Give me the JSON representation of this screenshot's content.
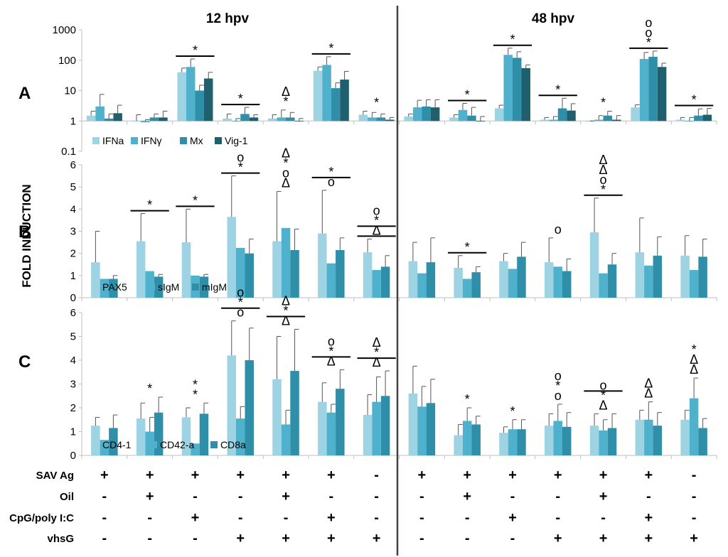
{
  "figure": {
    "header_left": "12 hpv",
    "header_right": "48 hpv",
    "y_axis_label": "FOLD INDUCTION",
    "panel_labels": [
      "A",
      "B",
      "C"
    ]
  },
  "colors": {
    "c1": "#9dd3e2",
    "c2": "#4fb1cb",
    "c3": "#2f8fa8",
    "c4": "#1f5f6e",
    "axis": "#bfbfbf",
    "divider": "#404040"
  },
  "treatments": {
    "rows": [
      {
        "label": "SAV Ag",
        "values": [
          "+",
          "+",
          "+",
          "+",
          "+",
          "+",
          "-",
          "+",
          "+",
          "+",
          "+",
          "+",
          "+",
          "-"
        ]
      },
      {
        "label": "Oil",
        "values": [
          "-",
          "+",
          "-",
          "-",
          "+",
          "-",
          "-",
          "-",
          "+",
          "-",
          "-",
          "+",
          "-",
          "-"
        ]
      },
      {
        "label": "CpG/poly I:C",
        "values": [
          "-",
          "-",
          "+",
          "-",
          "-",
          "+",
          "-",
          "-",
          "-",
          "+",
          "-",
          "-",
          "+",
          "-"
        ]
      },
      {
        "label": "vhsG",
        "values": [
          "-",
          "-",
          "-",
          "+",
          "+",
          "+",
          "+",
          "-",
          "-",
          "-",
          "+",
          "+",
          "+",
          "+"
        ]
      }
    ]
  },
  "chart_data": [
    {
      "panel": "A",
      "type": "bar",
      "scale": "log",
      "ylim": [
        0.1,
        1000
      ],
      "yticks": [
        "0.1",
        "1",
        "10",
        "100",
        "1000"
      ],
      "legend": [
        "IFNa",
        "IFNγ",
        "Mx",
        "Vig-1"
      ],
      "groups": 14,
      "series": [
        {
          "name": "IFNa",
          "values": [
            1.5,
            1.0,
            40,
            1.2,
            1.2,
            45,
            1.6,
            1.4,
            1.3,
            2.6,
            1.1,
            0.95,
            2.8,
            1.1
          ],
          "errors": [
            0.6,
            0.6,
            15,
            0.5,
            0.4,
            15,
            0.5,
            0.3,
            0.3,
            0.7,
            0.2,
            0.05,
            0.6,
            0.2
          ]
        },
        {
          "name": "IFNγ",
          "values": [
            3.0,
            0.9,
            60,
            1.0,
            1.3,
            70,
            1.3,
            2.8,
            2.3,
            150,
            1.1,
            1.1,
            110,
            1.0
          ],
          "errors": [
            4.5,
            0.2,
            50,
            0.2,
            1.0,
            60,
            0.6,
            2.0,
            1.5,
            100,
            0.3,
            0.4,
            70,
            0.3
          ]
        },
        {
          "name": "Mx",
          "values": [
            1.2,
            1.3,
            10,
            1.7,
            1.3,
            12,
            1.3,
            3.0,
            1.5,
            120,
            2.6,
            1.5,
            130,
            1.5
          ],
          "errors": [
            0.5,
            0.4,
            5,
            1.1,
            0.6,
            6,
            0.4,
            2.0,
            1.3,
            70,
            3.0,
            0.6,
            70,
            1.0
          ]
        },
        {
          "name": "Vig-1",
          "values": [
            1.8,
            1.3,
            25,
            1.3,
            1.0,
            23,
            1.1,
            2.8,
            1.0,
            55,
            2.2,
            1.1,
            60,
            1.6
          ],
          "errors": [
            1.5,
            0.8,
            15,
            0.3,
            0.2,
            20,
            0.2,
            2.2,
            0.4,
            15,
            1.5,
            0.4,
            20,
            1.0
          ]
        }
      ],
      "annotations": [
        {
          "group": 2,
          "text": "*",
          "line": true
        },
        {
          "group": 3,
          "text": "*",
          "line": true
        },
        {
          "group": 4,
          "text": "*",
          "line": false
        },
        {
          "group": 4,
          "text": "Δ",
          "line": false
        },
        {
          "group": 5,
          "text": "*",
          "line": true
        },
        {
          "group": 6,
          "text": "*",
          "line": false
        },
        {
          "group": 8,
          "text": "*",
          "line": true
        },
        {
          "group": 9,
          "text": "*",
          "line": true
        },
        {
          "group": 10,
          "text": "*",
          "line": true
        },
        {
          "group": 11,
          "text": "*",
          "line": false
        },
        {
          "group": 12,
          "text": "*",
          "line": true
        },
        {
          "group": 12,
          "text": "o",
          "line": false
        },
        {
          "group": 12,
          "text": "o",
          "line": false
        },
        {
          "group": 13,
          "text": "*",
          "line": true
        }
      ]
    },
    {
      "panel": "B",
      "type": "bar",
      "scale": "linear",
      "ylim": [
        0,
        6
      ],
      "yticks": [
        "0",
        "1",
        "2",
        "3",
        "4",
        "5",
        "6"
      ],
      "legend": [
        "PAX5",
        "sIgM",
        "mIgM"
      ],
      "groups": 14,
      "series": [
        {
          "name": "PAX5",
          "values": [
            1.6,
            2.55,
            2.5,
            3.65,
            2.55,
            2.9,
            2.05,
            1.65,
            1.35,
            1.65,
            1.6,
            2.95,
            2.05,
            1.9
          ],
          "errors": [
            1.4,
            1.25,
            1.5,
            1.85,
            2.25,
            1.95,
            0.6,
            0.85,
            0.55,
            0.35,
            1.1,
            1.55,
            1.55,
            0.9
          ]
        },
        {
          "name": "sIgM",
          "values": [
            0.85,
            1.2,
            1.0,
            2.25,
            3.15,
            1.55,
            1.25,
            1.1,
            0.85,
            1.3,
            1.4,
            1.1,
            1.45,
            1.25
          ]
        },
        {
          "name": "mIgM",
          "values": [
            0.85,
            0.95,
            0.95,
            2.0,
            2.15,
            2.15,
            1.4,
            1.6,
            1.15,
            1.85,
            1.2,
            1.5,
            1.9,
            1.85
          ],
          "errors": [
            0.15,
            0.1,
            0.1,
            0.65,
            0.95,
            0.55,
            0.5,
            1.1,
            0.25,
            0.65,
            0.55,
            0.5,
            0.85,
            0.8
          ]
        }
      ],
      "annotations": [
        {
          "group": 1,
          "text": "*",
          "line": true
        },
        {
          "group": 2,
          "text": "*",
          "line": true
        },
        {
          "group": 3,
          "text": "*",
          "line": true
        },
        {
          "group": 3,
          "text": "o",
          "line": false
        },
        {
          "group": 4,
          "text": "Δ",
          "line": false
        },
        {
          "group": 4,
          "text": "o",
          "line": false
        },
        {
          "group": 4,
          "text": "*",
          "line": false
        },
        {
          "group": 4,
          "text": "Δ",
          "line": false
        },
        {
          "group": 5,
          "text": "o",
          "line": false
        },
        {
          "group": 5,
          "text": "*",
          "line": true
        },
        {
          "group": 6,
          "text": "Δ",
          "line": true
        },
        {
          "group": 6,
          "text": "*",
          "line": true
        },
        {
          "group": 6,
          "text": "o",
          "line": false
        },
        {
          "group": 8,
          "text": "*",
          "line": true
        },
        {
          "group": 10,
          "text": "o",
          "line": false
        },
        {
          "group": 11,
          "text": "*",
          "line": true
        },
        {
          "group": 11,
          "text": "o",
          "line": false
        },
        {
          "group": 11,
          "text": "Δ",
          "line": false
        },
        {
          "group": 11,
          "text": "Δ",
          "line": false
        }
      ]
    },
    {
      "panel": "C",
      "type": "bar",
      "scale": "linear",
      "ylim": [
        0,
        6
      ],
      "yticks": [
        "0",
        "1",
        "2",
        "3",
        "4",
        "5",
        "6"
      ],
      "legend": [
        "CD4-1",
        "CD42-a",
        "CD8a"
      ],
      "groups": 14,
      "series": [
        {
          "name": "CD4-1",
          "values": [
            1.25,
            1.55,
            1.6,
            4.2,
            3.2,
            2.25,
            1.7,
            2.6,
            0.85,
            0.95,
            1.25,
            1.25,
            1.5,
            1.5
          ],
          "errors": [
            0.35,
            0.65,
            0.4,
            1.45,
            1.8,
            0.8,
            0.85,
            1.15,
            0.45,
            0.25,
            0.5,
            0.5,
            0.4,
            0.4
          ]
        },
        {
          "name": "CD42-a",
          "values": [
            0.65,
            1.0,
            0.5,
            1.55,
            1.3,
            1.8,
            2.25,
            2.05,
            1.45,
            1.1,
            1.45,
            1.05,
            1.5,
            2.4
          ],
          "errors": [
            0.0,
            0.6,
            0.0,
            0.5,
            0.6,
            0.35,
            1.05,
            0.85,
            0.55,
            0.4,
            0.7,
            0.45,
            0.75,
            0.85
          ]
        },
        {
          "name": "CD8a",
          "values": [
            1.15,
            1.8,
            1.75,
            4.0,
            3.55,
            2.8,
            2.5,
            2.2,
            1.3,
            1.1,
            1.2,
            1.15,
            1.25,
            1.15
          ],
          "errors": [
            0.55,
            0.65,
            0.45,
            1.35,
            1.75,
            0.8,
            1.05,
            1.0,
            0.35,
            0.4,
            0.6,
            0.6,
            0.55,
            0.4
          ]
        }
      ],
      "annotations": [
        {
          "group": 1,
          "text": "*",
          "line": false
        },
        {
          "group": 2,
          "text": "*",
          "line": false
        },
        {
          "group": 2,
          "text": "*",
          "line": false
        },
        {
          "group": 3,
          "text": "o",
          "line": false
        },
        {
          "group": 3,
          "text": "*",
          "line": true
        },
        {
          "group": 3,
          "text": "o",
          "line": false
        },
        {
          "group": 4,
          "text": "Δ",
          "line": false
        },
        {
          "group": 4,
          "text": "*",
          "line": true
        },
        {
          "group": 4,
          "text": "Δ",
          "line": false
        },
        {
          "group": 5,
          "text": "Δ",
          "line": false
        },
        {
          "group": 5,
          "text": "*",
          "line": true
        },
        {
          "group": 5,
          "text": "o",
          "line": false
        },
        {
          "group": 6,
          "text": "Δ",
          "line": false
        },
        {
          "group": 6,
          "text": "*",
          "line": true
        },
        {
          "group": 6,
          "text": "Δ",
          "line": false
        },
        {
          "group": 8,
          "text": "*",
          "line": false
        },
        {
          "group": 9,
          "text": "*",
          "line": false
        },
        {
          "group": 10,
          "text": "o",
          "line": false
        },
        {
          "group": 10,
          "text": "*",
          "line": false
        },
        {
          "group": 10,
          "text": "o",
          "line": false
        },
        {
          "group": 11,
          "text": "Δ",
          "line": false
        },
        {
          "group": 11,
          "text": "*",
          "line": false
        },
        {
          "group": 11,
          "text": "o",
          "line": true
        },
        {
          "group": 12,
          "text": "Δ",
          "line": false
        },
        {
          "group": 12,
          "text": "Δ",
          "line": false
        },
        {
          "group": 13,
          "text": "Δ",
          "line": false
        },
        {
          "group": 13,
          "text": "Δ",
          "line": false
        },
        {
          "group": 13,
          "text": "*",
          "line": false
        }
      ]
    }
  ]
}
